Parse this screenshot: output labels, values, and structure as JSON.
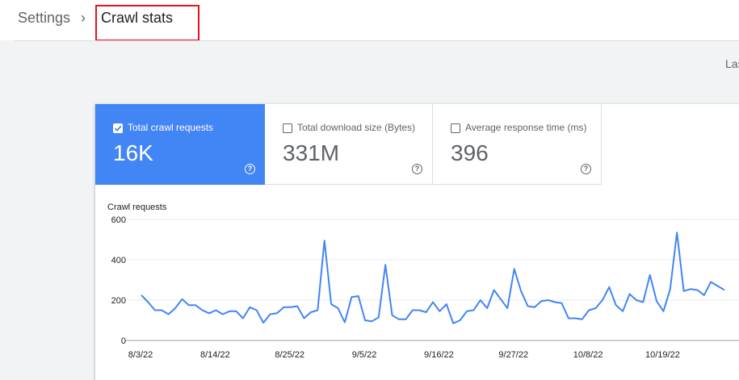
{
  "breadcrumb": {
    "parent": "Settings",
    "separator": "›",
    "current": "Crawl stats"
  },
  "header_right": {
    "last_label": "Las"
  },
  "metrics": [
    {
      "label": "Total crawl requests",
      "value": "16K",
      "selected": true,
      "help": "?"
    },
    {
      "label": "Total download size (Bytes)",
      "value": "331M",
      "selected": false,
      "help": "?"
    },
    {
      "label": "Average response time (ms)",
      "value": "396",
      "selected": false,
      "help": "?"
    }
  ],
  "colors": {
    "accent": "#4285f4",
    "highlight": "#e8131a"
  },
  "chart_data": {
    "type": "line",
    "ylabel": "Crawl requests",
    "ylim": [
      0,
      600
    ],
    "yticks": [
      0,
      200,
      400,
      600
    ],
    "grid": true,
    "xtick_labels": [
      "8/3/22",
      "8/14/22",
      "8/25/22",
      "9/5/22",
      "9/16/22",
      "9/27/22",
      "10/8/22",
      "10/19/22"
    ],
    "series": [
      {
        "color": "#4285f4",
        "values": [
          225,
          190,
          150,
          150,
          130,
          160,
          205,
          175,
          175,
          150,
          135,
          150,
          130,
          145,
          145,
          110,
          165,
          150,
          88,
          130,
          135,
          165,
          165,
          170,
          110,
          140,
          150,
          495,
          180,
          160,
          90,
          215,
          220,
          100,
          95,
          115,
          375,
          125,
          105,
          105,
          150,
          150,
          140,
          190,
          145,
          180,
          85,
          100,
          145,
          150,
          200,
          160,
          250,
          205,
          160,
          355,
          245,
          170,
          165,
          195,
          200,
          190,
          185,
          110,
          110,
          105,
          150,
          160,
          200,
          265,
          175,
          145,
          230,
          200,
          190,
          325,
          195,
          145,
          255,
          535,
          245,
          255,
          250,
          225,
          290,
          270,
          250
        ]
      }
    ]
  }
}
